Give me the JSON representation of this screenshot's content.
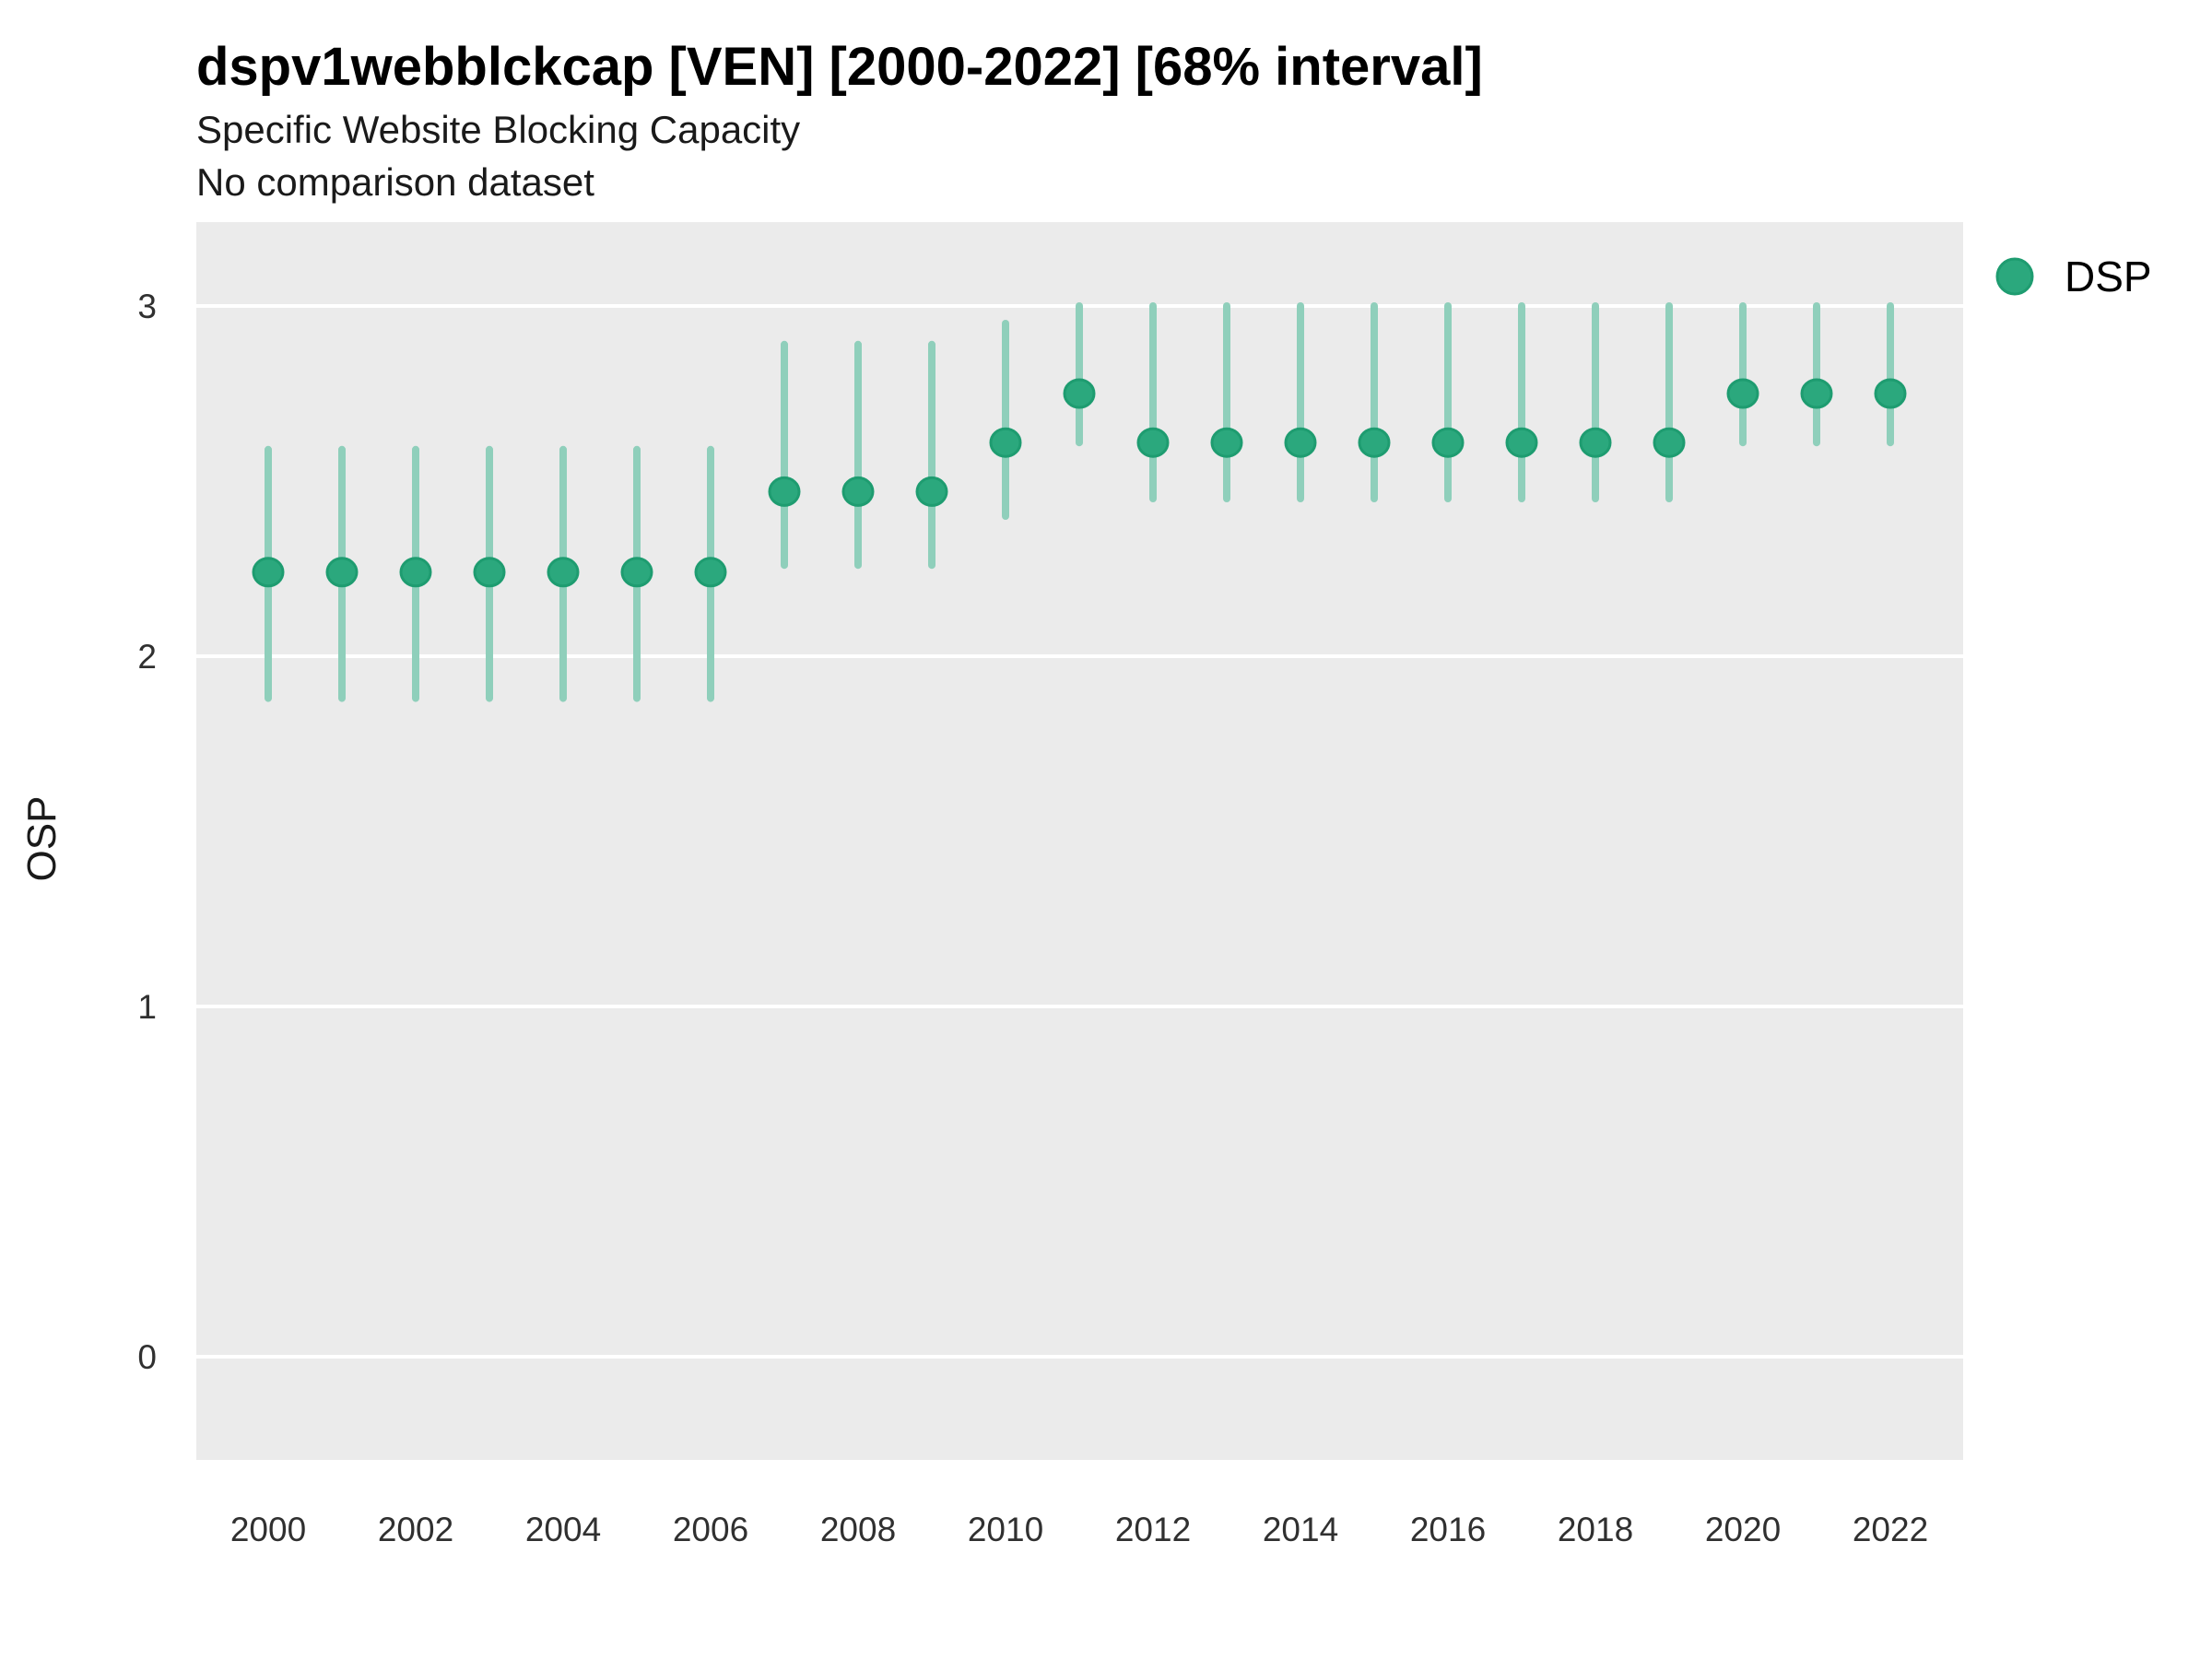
{
  "header": {
    "title": "dspv1webblckcap [VEN] [2000-2022] [68% interval]",
    "subtitle": "Specific Website Blocking Capacity",
    "comparison_note": "No comparison dataset"
  },
  "legend": {
    "position": "right",
    "items": [
      {
        "label": "DSP",
        "marker": "circle-icon"
      }
    ]
  },
  "colors": {
    "panel_background": "#EBEBEB",
    "gridline": "#FFFFFF",
    "interval_line": "#8FCFBB",
    "point_fill": "#2BA87D",
    "point_stroke": "#1E9C70",
    "text": "#000000"
  },
  "chart_data": {
    "type": "pointrange",
    "title": "dspv1webblckcap [VEN] [2000-2022] [68% interval]",
    "subtitle": "Specific Website Blocking Capacity",
    "note": "No comparison dataset",
    "xlabel": "",
    "ylabel": "OSP",
    "legend_position": "right",
    "grid": "horizontal-major-only",
    "x": [
      2000,
      2001,
      2002,
      2003,
      2004,
      2005,
      2006,
      2007,
      2008,
      2009,
      2010,
      2011,
      2012,
      2013,
      2014,
      2015,
      2016,
      2017,
      2018,
      2019,
      2020,
      2021,
      2022
    ],
    "x_tick_labels": [
      "2000",
      "2002",
      "2004",
      "2006",
      "2008",
      "2010",
      "2012",
      "2014",
      "2016",
      "2018",
      "2020",
      "2022"
    ],
    "x_tick_years": [
      2000,
      2002,
      2004,
      2006,
      2008,
      2010,
      2012,
      2014,
      2016,
      2018,
      2020,
      2022
    ],
    "y_ticks": [
      0,
      1,
      2,
      3
    ],
    "ylim": [
      -0.3,
      3.24
    ],
    "interval_label": "68% interval",
    "series": [
      {
        "name": "DSP",
        "mid": [
          2.24,
          2.24,
          2.24,
          2.24,
          2.24,
          2.24,
          2.24,
          2.47,
          2.47,
          2.47,
          2.61,
          2.75,
          2.61,
          2.61,
          2.61,
          2.61,
          2.61,
          2.61,
          2.61,
          2.61,
          2.75,
          2.75,
          2.75
        ],
        "lo": [
          1.88,
          1.88,
          1.88,
          1.88,
          1.88,
          1.88,
          1.88,
          2.26,
          2.26,
          2.26,
          2.4,
          2.61,
          2.45,
          2.45,
          2.45,
          2.45,
          2.45,
          2.45,
          2.45,
          2.45,
          2.61,
          2.61,
          2.61
        ],
        "hi": [
          2.59,
          2.59,
          2.59,
          2.59,
          2.59,
          2.59,
          2.59,
          2.89,
          2.89,
          2.89,
          2.95,
          3.0,
          3.0,
          3.0,
          3.0,
          3.0,
          3.0,
          3.0,
          3.0,
          3.0,
          3.0,
          3.0,
          3.0
        ]
      }
    ]
  }
}
